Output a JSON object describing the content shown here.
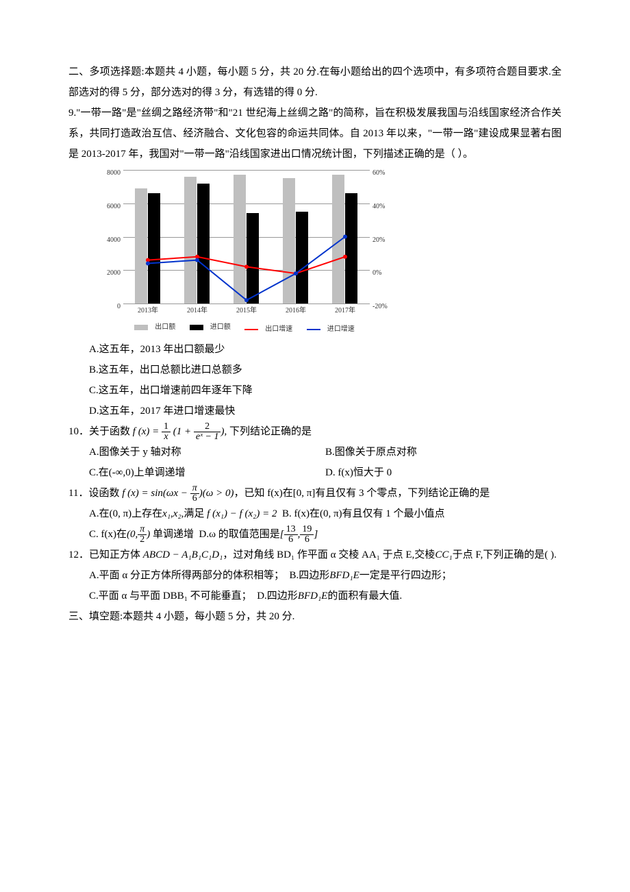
{
  "section2": {
    "header": "二、多项选择题:本题共 4 小题，每小题 5 分，共 20 分.在每小题给出的四个选项中，有多项符合题目要求.全部选对的得 5 分，部分选对的得 3 分，有选错的得 0 分."
  },
  "q9": {
    "stem_l1": "9.\"一带一路\"是\"丝绸之路经济带\"和\"21 世纪海上丝绸之路\"的简称，旨在积极发展我国与沿线国家经济合作关系，共同打造政治互信、经济融合、文化包容的命运共同体。自 2013 年以来，\"一带一路\"建设成果显著右图是 2013-2017 年，我国对\"一带一路\"沿线国家进出口情况统计图，下列描述正确的是（ ）。",
    "chart": {
      "type": "bar+line",
      "categories": [
        "2013年",
        "2014年",
        "2015年",
        "2016年",
        "2017年"
      ],
      "left_axis": {
        "min": 0,
        "max": 8000,
        "step": 2000,
        "ticks": [
          "0",
          "2000",
          "4000",
          "6000",
          "8000"
        ]
      },
      "right_axis": {
        "min": -20,
        "max": 60,
        "step": 20,
        "ticks": [
          "-20%",
          "0%",
          "20%",
          "40%",
          "60%"
        ]
      },
      "series_export_bar": {
        "label": "出口额",
        "color": "#bfbfbf",
        "values": [
          6900,
          7600,
          7700,
          7500,
          7700
        ]
      },
      "series_import_bar": {
        "label": "进口额",
        "color": "#000000",
        "values": [
          6600,
          7200,
          5400,
          5500,
          6600
        ]
      },
      "series_export_line": {
        "label": "出口增速",
        "color": "#ff0000",
        "values": [
          6,
          8,
          2,
          -2,
          8
        ]
      },
      "series_import_line": {
        "label": "进口增速",
        "color": "#0033cc",
        "values": [
          4,
          6,
          -18,
          -2,
          20
        ]
      },
      "grid_color": "#999999",
      "background": "#ffffff"
    },
    "optA": "A.这五年，2013 年出口额最少",
    "optB": "B.这五年，出口总额比进口总额多",
    "optC": "C.这五年，出口增速前四年逐年下降",
    "optD": "D.这五年，2017 年进口增速最快"
  },
  "q10": {
    "num": "10．",
    "stem_pre": "关于函数",
    "stem_post": ", 下列结论正确的是",
    "fx": "f (x) =",
    "frac1n": "1",
    "frac1d": "x",
    "lp": "(1 +",
    "frac2n": "2",
    "frac2d": "eˣ − 1",
    "rp": ")",
    "optA": "A.图像关于 y 轴对称",
    "optB": "B.图像关于原点对称",
    "optC": "C.在(-∞,0)上单调递增",
    "optD": "D.  f(x)恒大于 0"
  },
  "q11": {
    "num": "11．",
    "stem_pre": "设函数",
    "fx": "f (x) = sin(ωx −",
    "pi6n": "π",
    "pi6d": "6",
    "cond": ")(ω > 0)",
    "stem_post": "，已知 f(x)在[0, π]有且仅有 3 个零点，下列结论正确的是",
    "optA_pre": "A.在(0, π)上存在",
    "x1": "x₁",
    "x2": "x₂",
    "optA_mid": ",满足",
    "fx1": "f (x₁) − f (x₂) = 2",
    "optB": "B.  f(x)在(0, π)有且仅有 1 个最小值点",
    "optC_pre": "C.  f(x)在",
    "int_l": "(0,",
    "pi2n": "π",
    "pi2d": "2",
    "int_r": ")",
    "optC_post": "单调递增",
    "optD_pre": "D.ω 的取值范围是",
    "r_l": "[",
    "f13n": "13",
    "f13d": "6",
    "comma": ",",
    "f19n": "19",
    "f19d": "6",
    "r_r": "]"
  },
  "q12": {
    "num": "12．",
    "stem_pre": "已知正方体",
    "cube": "ABCD − A₁B₁C₁D₁",
    "stem_mid": "，过对角线 BD₁ 作平面 α 交棱 AA₁ 于点 E,交棱",
    "cc1": "CC₁",
    "stem_post": "于点 F,下列正确的是(  ).",
    "optA": "A.平面 α 分正方体所得两部分的体积相等；",
    "optB_pre": "B.四边形",
    "bfd1e": "BFD₁E",
    "optB_post": "一定是平行四边形；",
    "optC": "C.平面 α 与平面 DBB₁ 不可能垂直；",
    "optD_pre": "D.四边形",
    "optD_post": "的面积有最大值."
  },
  "section3": {
    "header": "三、填空题:本题共 4 小题，每小题 5 分，共 20 分."
  }
}
